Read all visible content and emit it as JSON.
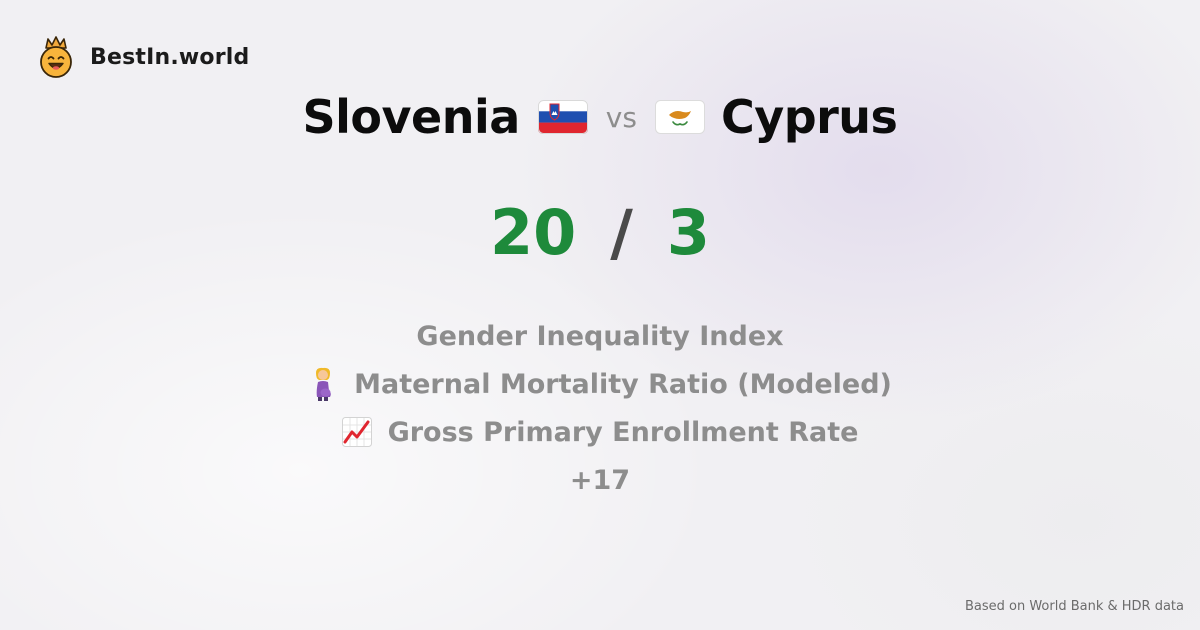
{
  "brand": {
    "name": "BestIn.world",
    "logo_icon": "crowned-smiley-logo-icon"
  },
  "comparison": {
    "country_a": "Slovenia",
    "country_a_flag": "slovenia-flag-icon",
    "vs_label": "vs",
    "country_b": "Cyprus",
    "country_b_flag": "cyprus-flag-icon",
    "score_a": "20",
    "score_separator": "/",
    "score_b": "3"
  },
  "metrics": [
    {
      "label": "Gender Inequality Index",
      "icon": ""
    },
    {
      "label": "Maternal Mortality Ratio (Modeled)",
      "icon": "pregnant-woman-icon"
    },
    {
      "label": "Gross Primary Enrollment Rate",
      "icon": "chart-increasing-icon"
    }
  ],
  "more_label": "+17",
  "footer": {
    "source": "Based on World Bank & HDR data"
  },
  "colors": {
    "score": "#1e8a3b",
    "muted": "#8d8d8d",
    "title": "#0c0c0c"
  }
}
